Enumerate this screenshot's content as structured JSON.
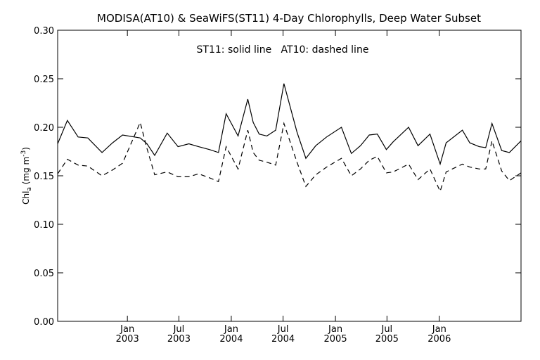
{
  "chart_data": {
    "type": "line",
    "title": "MODISA(AT10) & SeaWiFS(ST11) 4-Day Chlorophylls, Deep Water Subset",
    "annotation": "ST11: solid line   AT10: dashed line",
    "ylabel": {
      "main": "Chl",
      "sub": "a",
      "unit_pre": " (mg m",
      "sup": "-3",
      "unit_post": ")"
    },
    "ylim": [
      0.0,
      0.3
    ],
    "yticks": [
      "0.00",
      "0.05",
      "0.10",
      "0.15",
      "0.20",
      "0.25",
      "0.30"
    ],
    "xlim": [
      "2002-05-01",
      "2006-10-15"
    ],
    "xticks": [
      {
        "date": "2003-01-01",
        "month": "Jan",
        "year": "2003"
      },
      {
        "date": "2003-07-01",
        "month": "Jul",
        "year": "2003"
      },
      {
        "date": "2004-01-01",
        "month": "Jan",
        "year": "2004"
      },
      {
        "date": "2004-07-01",
        "month": "Jul",
        "year": "2004"
      },
      {
        "date": "2005-01-01",
        "month": "Jan",
        "year": "2005"
      },
      {
        "date": "2005-07-01",
        "month": "Jul",
        "year": "2005"
      },
      {
        "date": "2006-01-01",
        "month": "Jan",
        "year": "2006"
      }
    ],
    "grid": false,
    "series": [
      {
        "style": "solid",
        "points": [
          [
            "2002-05-01",
            0.183
          ],
          [
            "2002-06-04",
            0.207
          ],
          [
            "2002-07-12",
            0.19
          ],
          [
            "2002-08-15",
            0.189
          ],
          [
            "2002-10-04",
            0.174
          ],
          [
            "2002-11-10",
            0.184
          ],
          [
            "2002-12-15",
            0.192
          ],
          [
            "2003-02-15",
            0.189
          ],
          [
            "2003-03-11",
            0.183
          ],
          [
            "2003-04-07",
            0.171
          ],
          [
            "2003-05-21",
            0.194
          ],
          [
            "2003-06-28",
            0.18
          ],
          [
            "2003-08-05",
            0.183
          ],
          [
            "2003-09-08",
            0.18
          ],
          [
            "2003-10-16",
            0.177
          ],
          [
            "2003-11-17",
            0.174
          ],
          [
            "2003-12-14",
            0.214
          ],
          [
            "2004-01-25",
            0.191
          ],
          [
            "2004-02-28",
            0.229
          ],
          [
            "2004-03-18",
            0.205
          ],
          [
            "2004-04-08",
            0.193
          ],
          [
            "2004-05-05",
            0.191
          ],
          [
            "2004-06-05",
            0.197
          ],
          [
            "2004-07-04",
            0.245
          ],
          [
            "2004-08-19",
            0.195
          ],
          [
            "2004-09-19",
            0.168
          ],
          [
            "2004-10-24",
            0.181
          ],
          [
            "2004-12-01",
            0.19
          ],
          [
            "2005-01-22",
            0.2
          ],
          [
            "2005-02-26",
            0.173
          ],
          [
            "2005-03-30",
            0.181
          ],
          [
            "2005-04-30",
            0.192
          ],
          [
            "2005-05-28",
            0.193
          ],
          [
            "2005-06-29",
            0.177
          ],
          [
            "2005-07-23",
            0.185
          ],
          [
            "2005-09-15",
            0.2
          ],
          [
            "2005-10-18",
            0.181
          ],
          [
            "2005-11-29",
            0.193
          ],
          [
            "2006-01-04",
            0.162
          ],
          [
            "2006-01-25",
            0.184
          ],
          [
            "2006-03-23",
            0.197
          ],
          [
            "2006-04-18",
            0.184
          ],
          [
            "2006-05-21",
            0.18
          ],
          [
            "2006-06-13",
            0.179
          ],
          [
            "2006-07-05",
            0.204
          ],
          [
            "2006-08-08",
            0.176
          ],
          [
            "2006-09-04",
            0.174
          ],
          [
            "2006-10-15",
            0.186
          ]
        ]
      },
      {
        "style": "dashed",
        "points": [
          [
            "2002-05-01",
            0.152
          ],
          [
            "2002-06-04",
            0.167
          ],
          [
            "2002-07-12",
            0.161
          ],
          [
            "2002-08-15",
            0.16
          ],
          [
            "2002-10-04",
            0.15
          ],
          [
            "2002-11-10",
            0.156
          ],
          [
            "2002-12-15",
            0.163
          ],
          [
            "2003-02-15",
            0.205
          ],
          [
            "2003-03-11",
            0.178
          ],
          [
            "2003-04-07",
            0.151
          ],
          [
            "2003-05-21",
            0.154
          ],
          [
            "2003-06-28",
            0.149
          ],
          [
            "2003-08-05",
            0.149
          ],
          [
            "2003-09-08",
            0.152
          ],
          [
            "2003-10-16",
            0.148
          ],
          [
            "2003-11-17",
            0.144
          ],
          [
            "2003-12-14",
            0.18
          ],
          [
            "2004-01-25",
            0.157
          ],
          [
            "2004-02-28",
            0.197
          ],
          [
            "2004-03-18",
            0.174
          ],
          [
            "2004-04-08",
            0.166
          ],
          [
            "2004-05-05",
            0.164
          ],
          [
            "2004-06-05",
            0.161
          ],
          [
            "2004-07-04",
            0.204
          ],
          [
            "2004-08-19",
            0.164
          ],
          [
            "2004-09-19",
            0.139
          ],
          [
            "2004-10-24",
            0.151
          ],
          [
            "2004-12-01",
            0.159
          ],
          [
            "2005-01-22",
            0.168
          ],
          [
            "2005-02-26",
            0.15
          ],
          [
            "2005-03-30",
            0.157
          ],
          [
            "2005-04-30",
            0.166
          ],
          [
            "2005-05-28",
            0.17
          ],
          [
            "2005-06-29",
            0.153
          ],
          [
            "2005-07-23",
            0.154
          ],
          [
            "2005-09-15",
            0.162
          ],
          [
            "2005-10-18",
            0.146
          ],
          [
            "2005-11-29",
            0.157
          ],
          [
            "2006-01-04",
            0.134
          ],
          [
            "2006-01-25",
            0.154
          ],
          [
            "2006-03-23",
            0.162
          ],
          [
            "2006-04-18",
            0.159
          ],
          [
            "2006-05-21",
            0.157
          ],
          [
            "2006-06-13",
            0.157
          ],
          [
            "2006-07-05",
            0.186
          ],
          [
            "2006-08-08",
            0.155
          ],
          [
            "2006-09-04",
            0.145
          ],
          [
            "2006-10-15",
            0.153
          ]
        ]
      }
    ]
  }
}
